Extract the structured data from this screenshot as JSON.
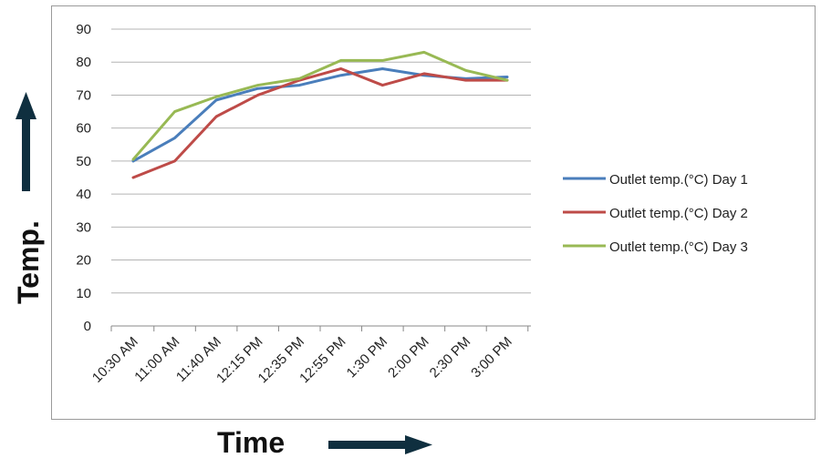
{
  "chart_data": {
    "type": "line",
    "categories": [
      "10:30 AM",
      "11:00 AM",
      "11:40 AM",
      "12:15 PM",
      "12:35 PM",
      "12:55 PM",
      "1:30 PM",
      "2:00 PM",
      "2:30 PM",
      "3:00 PM"
    ],
    "series": [
      {
        "name": "Outlet temp.(°C) Day 1",
        "color": "#4a7ebb",
        "values": [
          50,
          57,
          68.5,
          72,
          73,
          76,
          78,
          76,
          75,
          75.5
        ]
      },
      {
        "name": "Outlet temp.(°C) Day 2",
        "color": "#be4b48",
        "values": [
          45,
          50,
          63.5,
          70,
          74.5,
          78,
          73,
          76.5,
          74.5,
          74.5
        ]
      },
      {
        "name": "Outlet temp.(°C) Day 3",
        "color": "#98b954",
        "values": [
          50.5,
          65,
          69.5,
          73,
          75,
          80.5,
          80.5,
          83,
          77.5,
          74.5
        ]
      }
    ],
    "xlabel": "Time",
    "ylabel": "Temp.",
    "yticks": [
      "0",
      "10",
      "20",
      "30",
      "40",
      "50",
      "60",
      "70",
      "80",
      "90"
    ],
    "ylim": [
      0,
      90
    ],
    "grid": "horizontal",
    "legend": "right",
    "axis_arrow_color": "#0f2f3f"
  }
}
